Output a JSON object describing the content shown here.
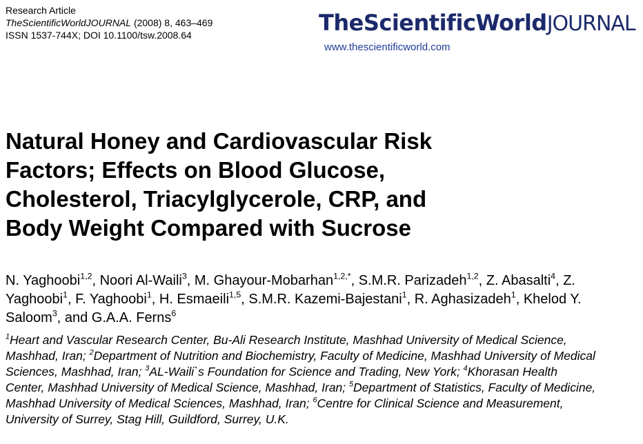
{
  "header": {
    "article_type": "Research Article",
    "journal": "TheScientificWorldJOURNAL",
    "citation": " (2008) 8, 463–469",
    "issn": "ISSN 1537-744X; DOI 10.1100/tsw.2008.64"
  },
  "logo": {
    "name": "TheScientificWorld",
    "suffix": "JOURNAL",
    "url": "www.thescientificworld.com"
  },
  "title": "Natural Honey and Cardiovascular Risk Factors; Effects on Blood Glucose, Cholesterol, Triacylglycerole, CRP, and Body Weight Compared with Sucrose",
  "authors": [
    {
      "name": "N. Yaghoobi",
      "sup": "1,2"
    },
    {
      "name": ", Noori Al-Waili",
      "sup": "3"
    },
    {
      "name": ", M. Ghayour-Mobarhan",
      "sup": "1,2,*"
    },
    {
      "name": ", S.M.R. Parizadeh",
      "sup": "1,2"
    },
    {
      "name": ", Z. Abasalti",
      "sup": "4"
    },
    {
      "name": ", Z. Yaghoobi",
      "sup": "1"
    },
    {
      "name": ", F. Yaghoobi",
      "sup": "1"
    },
    {
      "name": ", H. Esmaeili",
      "sup": "1,5"
    },
    {
      "name": ", S.M.R. Kazemi-Bajestani",
      "sup": "1"
    },
    {
      "name": ", R. Aghasizadeh",
      "sup": "1"
    },
    {
      "name": ", Khelod Y. Saloom",
      "sup": "3"
    },
    {
      "name": ", and G.A.A. Ferns",
      "sup": "6"
    }
  ],
  "affiliations": [
    {
      "sup": "1",
      "text": "Heart and Vascular Research Center, Bu-Ali Research Institute, Mashhad University of Medical Science, Mashhad, Iran; "
    },
    {
      "sup": "2",
      "text": "Department of Nutrition and Biochemistry, Faculty of Medicine, Mashhad University of Medical Sciences, Mashhad, Iran; "
    },
    {
      "sup": "3",
      "text": "AL-Waili`s Foundation for Science and Trading, New York; "
    },
    {
      "sup": "4",
      "text": "Khorasan Health Center, Mashhad University of Medical Science, Mashhad, Iran; "
    },
    {
      "sup": "5",
      "text": "Department of Statistics, Faculty of Medicine, Mashhad University of Medical Sciences, Mashhad, Iran; "
    },
    {
      "sup": "6",
      "text": "Centre for Clinical Science and Measurement, University of Surrey, Stag Hill, Guildford, Surrey, U.K."
    }
  ]
}
